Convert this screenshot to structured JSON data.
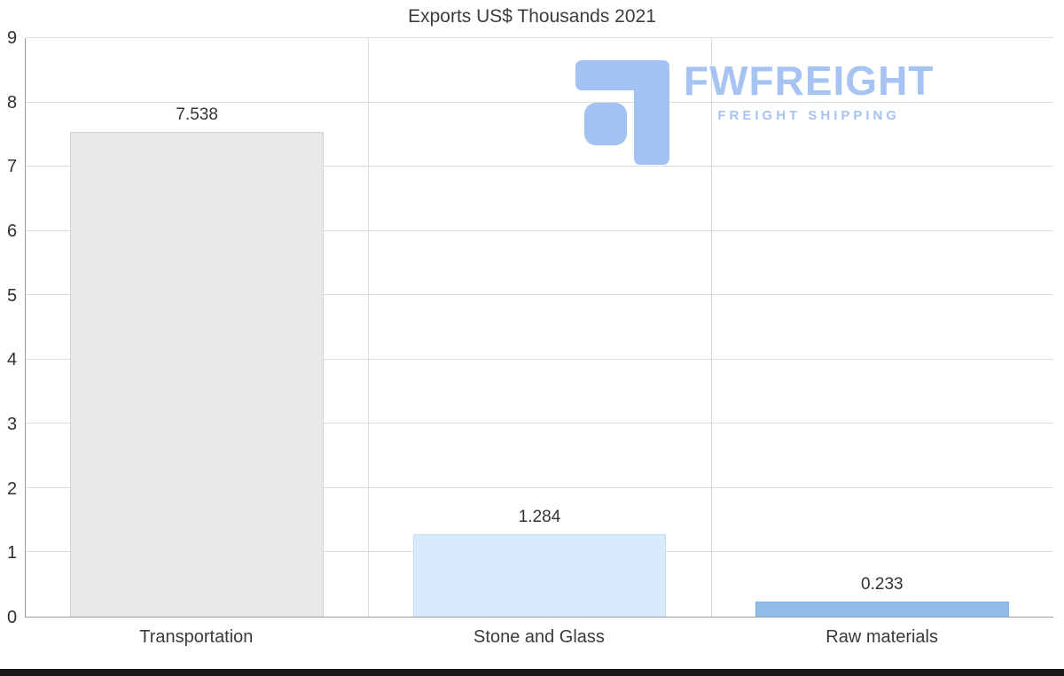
{
  "logo": {
    "name": "FWFREIGHT",
    "tagline": "FREIGHT SHIPPING",
    "color": "#a7c3f1",
    "icon_color": "#a3c2f2"
  },
  "chart_data": {
    "type": "bar",
    "title": "Exports US$ Thousands 2021",
    "categories": [
      "Transportation",
      "Stone and Glass",
      "Raw materials"
    ],
    "values": [
      7.538,
      1.284,
      0.233
    ],
    "value_labels": [
      "7.538",
      "1.284",
      "0.233"
    ],
    "bar_colors": [
      "#e8e8e8",
      "#d9eafd",
      "#8fbce9"
    ],
    "bar_border_colors": [
      "#d2d2d2",
      "#c3ddf5",
      "#7fb0e2"
    ],
    "xlabel": "",
    "ylabel": "",
    "ylim": [
      0,
      9
    ],
    "yticks": [
      0,
      1,
      2,
      3,
      4,
      5,
      6,
      7,
      8,
      9
    ],
    "grid": true,
    "legend": false
  }
}
